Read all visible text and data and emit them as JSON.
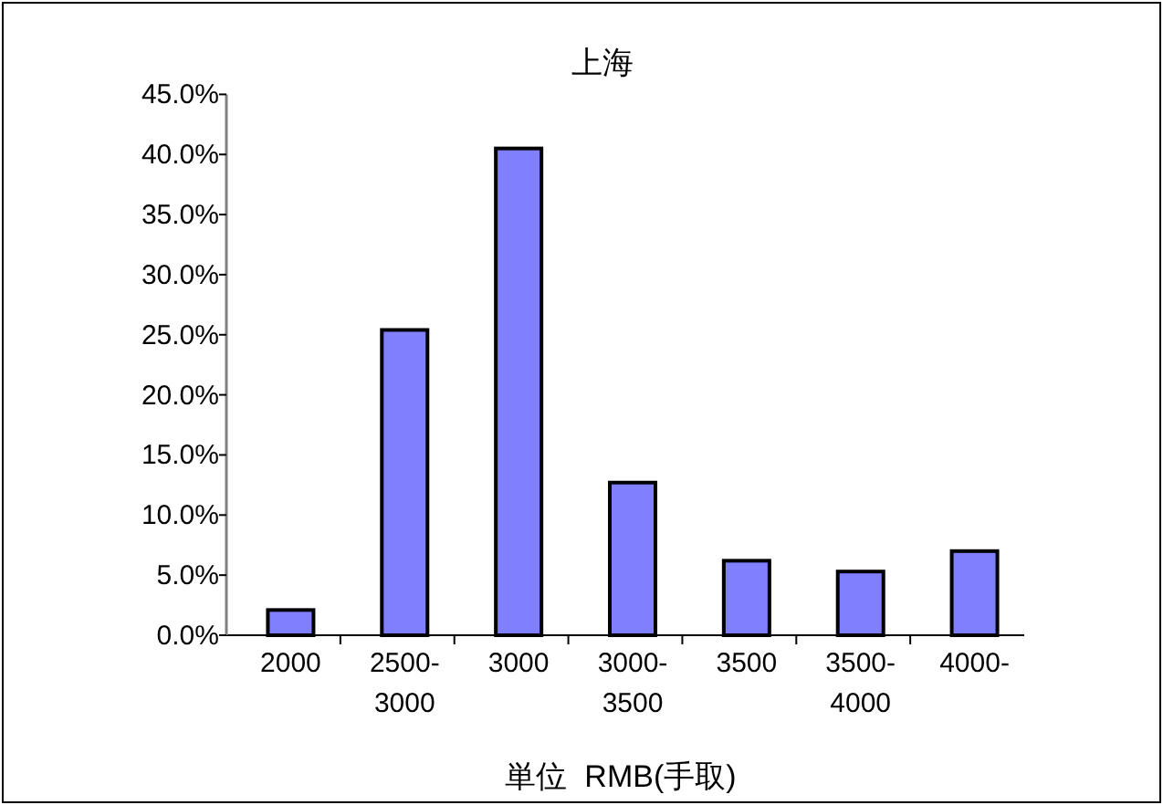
{
  "chart_data": {
    "type": "bar",
    "title": "上海",
    "xlabel": "単位  RMB(手取)",
    "categories": [
      "2000",
      "2500-3000",
      "3000",
      "3000-3500",
      "3500",
      "3500-4000",
      "4000-"
    ],
    "values": [
      2.1,
      25.4,
      40.5,
      12.7,
      6.2,
      5.3,
      7.0
    ],
    "color": "#8080ff",
    "ylim": [
      0,
      45
    ],
    "yticks": [
      {
        "value": 0,
        "label": "0.0%"
      },
      {
        "value": 5,
        "label": "5.0%"
      },
      {
        "value": 10,
        "label": "10.0%"
      },
      {
        "value": 15,
        "label": "15.0%"
      },
      {
        "value": 20,
        "label": "20.0%"
      },
      {
        "value": 25,
        "label": "25.0%"
      },
      {
        "value": 30,
        "label": "30.0%"
      },
      {
        "value": 35,
        "label": "35.0%"
      },
      {
        "value": 40,
        "label": "40.0%"
      },
      {
        "value": 45,
        "label": "45.0%"
      }
    ]
  }
}
